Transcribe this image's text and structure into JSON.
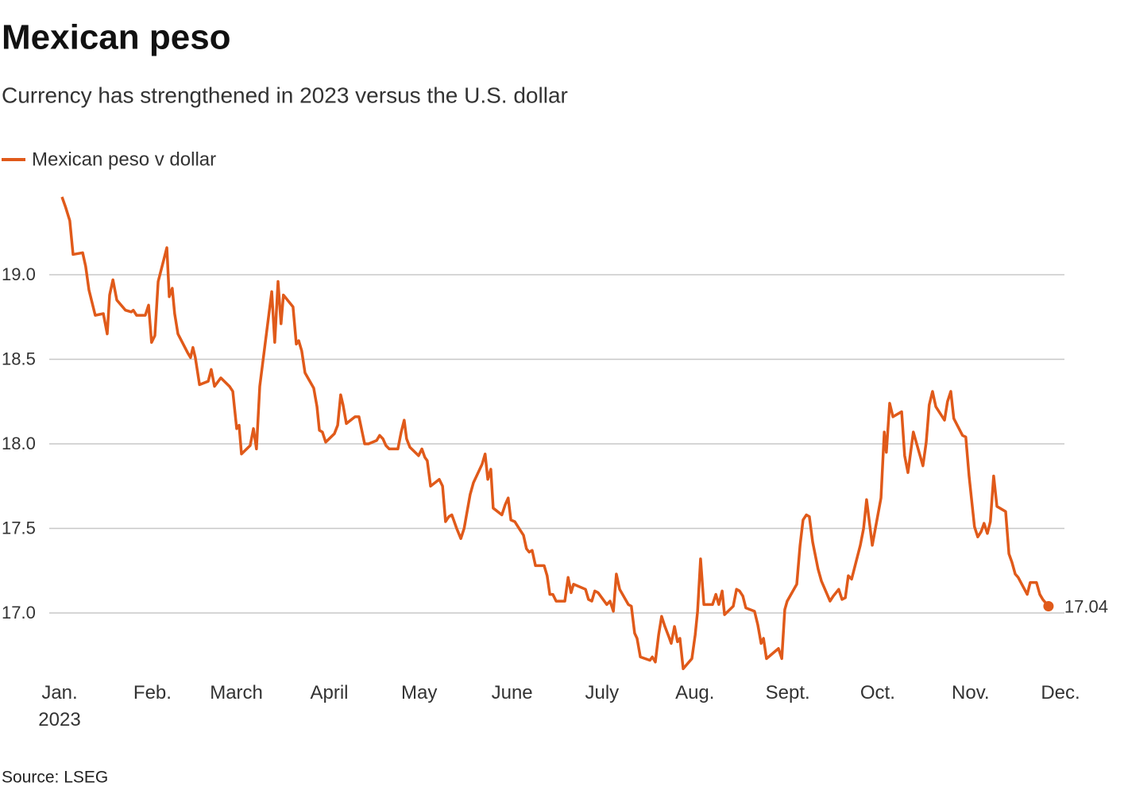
{
  "chart_data": {
    "type": "line",
    "title": "Mexican peso",
    "subtitle": "Currency has strengthened in 2023 versus the U.S. dollar",
    "source": "Source: LSEG",
    "xlim": [
      0,
      334
    ],
    "xticks": [
      {
        "value": 0,
        "label": "Jan.\n2023"
      },
      {
        "value": 31,
        "label": "Feb."
      },
      {
        "value": 59,
        "label": "March"
      },
      {
        "value": 90,
        "label": "April"
      },
      {
        "value": 120,
        "label": "May"
      },
      {
        "value": 151,
        "label": "June"
      },
      {
        "value": 181,
        "label": "July"
      },
      {
        "value": 212,
        "label": "Aug."
      },
      {
        "value": 243,
        "label": "Sept."
      },
      {
        "value": 273,
        "label": "Oct."
      },
      {
        "value": 304,
        "label": "Nov."
      },
      {
        "value": 334,
        "label": "Dec."
      }
    ],
    "ylim": [
      16.6,
      19.5
    ],
    "yticks": [
      {
        "value": 17,
        "label": "17.0"
      },
      17.5,
      {
        "value": 18,
        "label": "18.0"
      },
      18.5,
      {
        "value": 19,
        "label": "19.0"
      }
    ],
    "grid": true,
    "x": [
      0.8,
      2,
      3.4,
      4.5,
      7.7,
      8.7,
      9.8,
      11.9,
      14.6,
      15.9,
      16.7,
      17.8,
      19.1,
      22,
      23.9,
      24.6,
      25.7,
      28.6,
      29.7,
      30.7,
      31.8,
      32.9,
      35.8,
      36.6,
      37.6,
      38.4,
      39.5,
      42.7,
      43.7,
      44.5,
      45.3,
      46.7,
      49.6,
      50.6,
      51.7,
      53.8,
      56.7,
      57.8,
      59.1,
      59.9,
      60.7,
      63.6,
      64.7,
      65.7,
      66.8,
      70.8,
      71.8,
      72.9,
      73.9,
      74.7,
      77.9,
      79,
      79.8,
      80.8,
      81.9,
      84.8,
      85.9,
      86.7,
      87.7,
      88.8,
      91.7,
      92.8,
      93.8,
      94.6,
      95.7,
      98.6,
      99.9,
      101.8,
      103.1,
      105.8,
      106.8,
      107.9,
      108.9,
      110,
      112.9,
      114,
      115,
      115.8,
      116.9,
      119.8,
      120.9,
      121.9,
      122.7,
      123.8,
      126.7,
      127.8,
      128.8,
      129.9,
      130.9,
      132.5,
      133.9,
      135,
      136,
      137,
      138.1,
      141,
      142,
      142.9,
      143.9,
      144.7,
      147.6,
      148.7,
      149.7,
      150.6,
      151.9,
      153.7,
      154.8,
      155.8,
      156.7,
      157.7,
      158.8,
      161.7,
      162.7,
      163.6,
      164.6,
      165.7,
      168.6,
      169.7,
      170.7,
      171.5,
      175.5,
      176.5,
      177.6,
      178.6,
      179.7,
      182.6,
      183.7,
      184.8,
      185.8,
      186.9,
      189.8,
      190.8,
      191.9,
      192.7,
      193.8,
      197,
      197.8,
      198.8,
      199.9,
      200.9,
      202,
      203.3,
      204.1,
      205.2,
      206.2,
      207,
      208.1,
      211,
      212.1,
      212.9,
      213.9,
      215,
      217.9,
      219,
      220,
      221.1,
      221.9,
      224.8,
      225.9,
      226.9,
      228,
      229,
      231.9,
      233,
      234.1,
      234.9,
      235.9,
      239.9,
      241,
      242,
      242.8,
      246,
      247.1,
      248.1,
      249.2,
      250.2,
      251.3,
      253.1,
      254.2,
      257.1,
      258.2,
      260,
      261.1,
      262.2,
      263.2,
      264.3,
      267.2,
      268.3,
      269.3,
      271.2,
      274.1,
      275.2,
      275.9,
      277,
      278.1,
      281,
      282,
      283.1,
      284.9,
      288.1,
      289.2,
      290.2,
      291.3,
      292.4,
      295.3,
      296.3,
      297.4,
      298.4,
      301.3,
      302.4,
      303.5,
      305.3,
      306.4,
      307.5,
      308.5,
      309.6,
      310.6,
      311.7,
      312.8,
      315.7,
      316.8,
      317.8,
      318.9,
      319.9,
      322.9,
      323.9,
      326,
      327.1,
      328.1,
      330
    ],
    "series": [
      {
        "name": "Mexican peso v dollar",
        "color": "#e05a1a",
        "values": [
          19.46,
          19.4,
          19.32,
          19.12,
          19.13,
          19.05,
          18.91,
          18.76,
          18.77,
          18.65,
          18.88,
          18.97,
          18.85,
          18.79,
          18.78,
          18.79,
          18.76,
          18.76,
          18.82,
          18.6,
          18.64,
          18.96,
          19.16,
          18.87,
          18.92,
          18.77,
          18.65,
          18.54,
          18.51,
          18.57,
          18.51,
          18.35,
          18.37,
          18.44,
          18.34,
          18.39,
          18.34,
          18.31,
          18.09,
          18.11,
          17.94,
          17.99,
          18.09,
          17.97,
          18.34,
          18.9,
          18.6,
          18.96,
          18.71,
          18.88,
          18.81,
          18.59,
          18.61,
          18.55,
          18.42,
          18.33,
          18.22,
          18.08,
          18.07,
          18.01,
          18.06,
          18.11,
          18.29,
          18.23,
          18.12,
          18.16,
          18.16,
          18.0,
          18.0,
          18.02,
          18.05,
          18.03,
          17.99,
          17.97,
          17.97,
          18.07,
          18.14,
          18.03,
          17.98,
          17.93,
          17.97,
          17.92,
          17.9,
          17.75,
          17.79,
          17.75,
          17.54,
          17.57,
          17.58,
          17.5,
          17.44,
          17.5,
          17.6,
          17.7,
          17.77,
          17.88,
          17.94,
          17.79,
          17.85,
          17.62,
          17.58,
          17.64,
          17.68,
          17.55,
          17.54,
          17.49,
          17.46,
          17.38,
          17.36,
          17.37,
          17.28,
          17.28,
          17.22,
          17.11,
          17.11,
          17.07,
          17.07,
          17.21,
          17.12,
          17.17,
          17.14,
          17.08,
          17.07,
          17.13,
          17.12,
          17.05,
          17.07,
          17.01,
          17.23,
          17.14,
          17.05,
          17.04,
          16.88,
          16.85,
          16.74,
          16.72,
          16.74,
          16.71,
          16.87,
          16.98,
          16.92,
          16.86,
          16.82,
          16.92,
          16.83,
          16.85,
          16.67,
          16.73,
          16.87,
          17.01,
          17.32,
          17.05,
          17.05,
          17.11,
          17.05,
          17.13,
          16.99,
          17.04,
          17.14,
          17.13,
          17.1,
          17.03,
          17.01,
          16.93,
          16.82,
          16.85,
          16.73,
          16.79,
          16.73,
          17.02,
          17.07,
          17.17,
          17.4,
          17.55,
          17.58,
          17.57,
          17.42,
          17.26,
          17.19,
          17.07,
          17.1,
          17.14,
          17.08,
          17.09,
          17.22,
          17.2,
          17.4,
          17.5,
          17.67,
          17.4,
          17.68,
          18.07,
          17.95,
          18.24,
          18.16,
          18.19,
          17.93,
          17.83,
          18.07,
          17.87,
          18.01,
          18.23,
          18.31,
          18.22,
          18.14,
          18.25,
          18.31,
          18.15,
          18.05,
          18.04,
          17.81,
          17.51,
          17.45,
          17.48,
          17.53,
          17.47,
          17.54,
          17.81,
          17.63,
          17.6,
          17.35,
          17.3,
          17.23,
          17.21,
          17.11,
          17.18,
          17.18,
          17.11,
          17.08,
          17.04
        ]
      }
    ]
  }
}
